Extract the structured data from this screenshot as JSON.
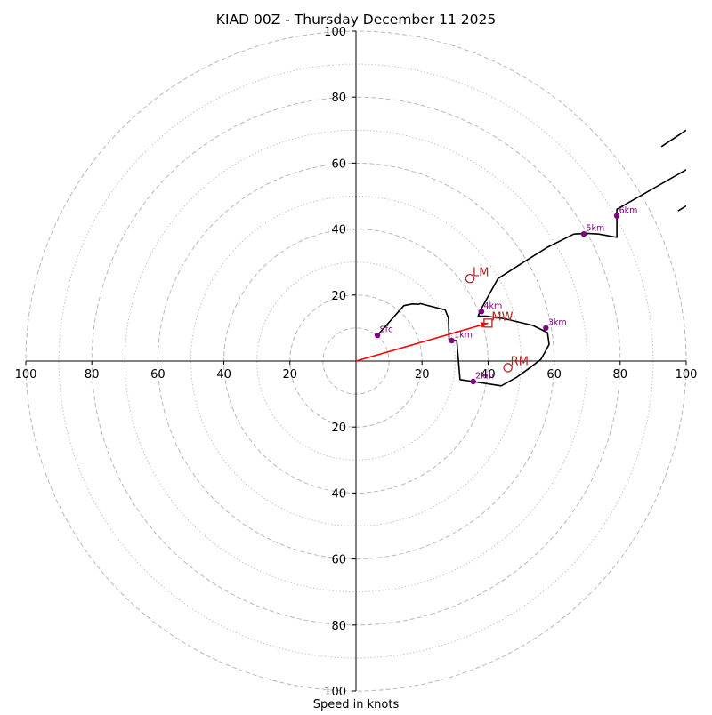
{
  "chart_data": {
    "type": "hodograph",
    "title": "KIAD 00Z - Thursday December 11 2025",
    "xlabel": "Speed in knots",
    "ylabel": "",
    "xlim": [
      -100,
      100
    ],
    "ylim": [
      -100,
      100
    ],
    "units": "knots",
    "rings": {
      "dashed": [
        10,
        20,
        40,
        60,
        80,
        100
      ],
      "dotted": [
        30,
        50,
        70,
        90
      ]
    },
    "ticks": {
      "x_labels": [
        "100",
        "80",
        "60",
        "40",
        "20",
        "20",
        "40",
        "60",
        "80",
        "100"
      ],
      "x_values": [
        -100,
        -80,
        -60,
        -40,
        -20,
        20,
        40,
        60,
        80,
        100
      ],
      "y_labels": [
        "100",
        "80",
        "60",
        "40",
        "20",
        "20",
        "40",
        "60",
        "80",
        "100"
      ],
      "y_values": [
        100,
        80,
        60,
        40,
        20,
        -20,
        -40,
        -60,
        -80,
        -100
      ]
    },
    "hodograph_line": [
      [
        6.5,
        7.8
      ],
      [
        14.5,
        16.8
      ],
      [
        17,
        17.3
      ],
      [
        19,
        17.2
      ],
      [
        19.5,
        17.4
      ],
      [
        21,
        17
      ],
      [
        27,
        15.5
      ],
      [
        28,
        13
      ],
      [
        28.2,
        6.3
      ],
      [
        30.5,
        6.2
      ],
      [
        31.5,
        -5.6
      ],
      [
        35.5,
        -6.2
      ],
      [
        44,
        -7.5
      ],
      [
        48.5,
        -5
      ],
      [
        52,
        -2.5
      ],
      [
        56,
        0.5
      ],
      [
        58.5,
        5
      ],
      [
        58,
        8.6
      ],
      [
        53.5,
        10.8
      ],
      [
        45,
        12.8
      ],
      [
        39.5,
        13.6
      ],
      [
        37,
        13.6
      ],
      [
        37.5,
        15
      ],
      [
        43,
        25
      ],
      [
        50,
        29.5
      ],
      [
        58,
        34.5
      ],
      [
        66,
        38.5
      ],
      [
        70,
        38.7
      ],
      [
        73.5,
        38.5
      ],
      [
        79,
        37.5
      ],
      [
        79,
        46
      ],
      [
        100,
        58
      ]
    ],
    "hodograph_line_upper": [
      [
        92.5,
        65
      ],
      [
        100,
        70
      ]
    ],
    "hodograph_line_edge": [
      [
        97.5,
        45.5
      ],
      [
        100,
        47
      ]
    ],
    "height_markers": [
      {
        "label": "Sfc",
        "u": 6.5,
        "v": 7.8
      },
      {
        "label": "1km",
        "u": 29,
        "v": 6.2
      },
      {
        "label": "2km",
        "u": 35.5,
        "v": -6.2
      },
      {
        "label": "3km",
        "u": 57.5,
        "v": 10
      },
      {
        "label": "4km",
        "u": 38,
        "v": 15
      },
      {
        "label": "5km",
        "u": 69,
        "v": 38.5
      },
      {
        "label": "6km",
        "u": 79,
        "v": 44
      }
    ],
    "storm_motion": {
      "lm": {
        "label": "LM",
        "u": 34.5,
        "v": 25
      },
      "rm": {
        "label": "RM",
        "u": 46,
        "v": -2
      },
      "mw": {
        "label": "MW",
        "u": 40,
        "v": 11.5
      }
    },
    "vector": {
      "from": [
        0,
        0
      ],
      "to": [
        40,
        11.5
      ]
    },
    "colors": {
      "hodograph": "#000000",
      "markers": "#800080",
      "storm_motion": "#b22222",
      "vector": "#ff0000",
      "rings": "#b8b8b8",
      "axes": "#000000"
    }
  }
}
